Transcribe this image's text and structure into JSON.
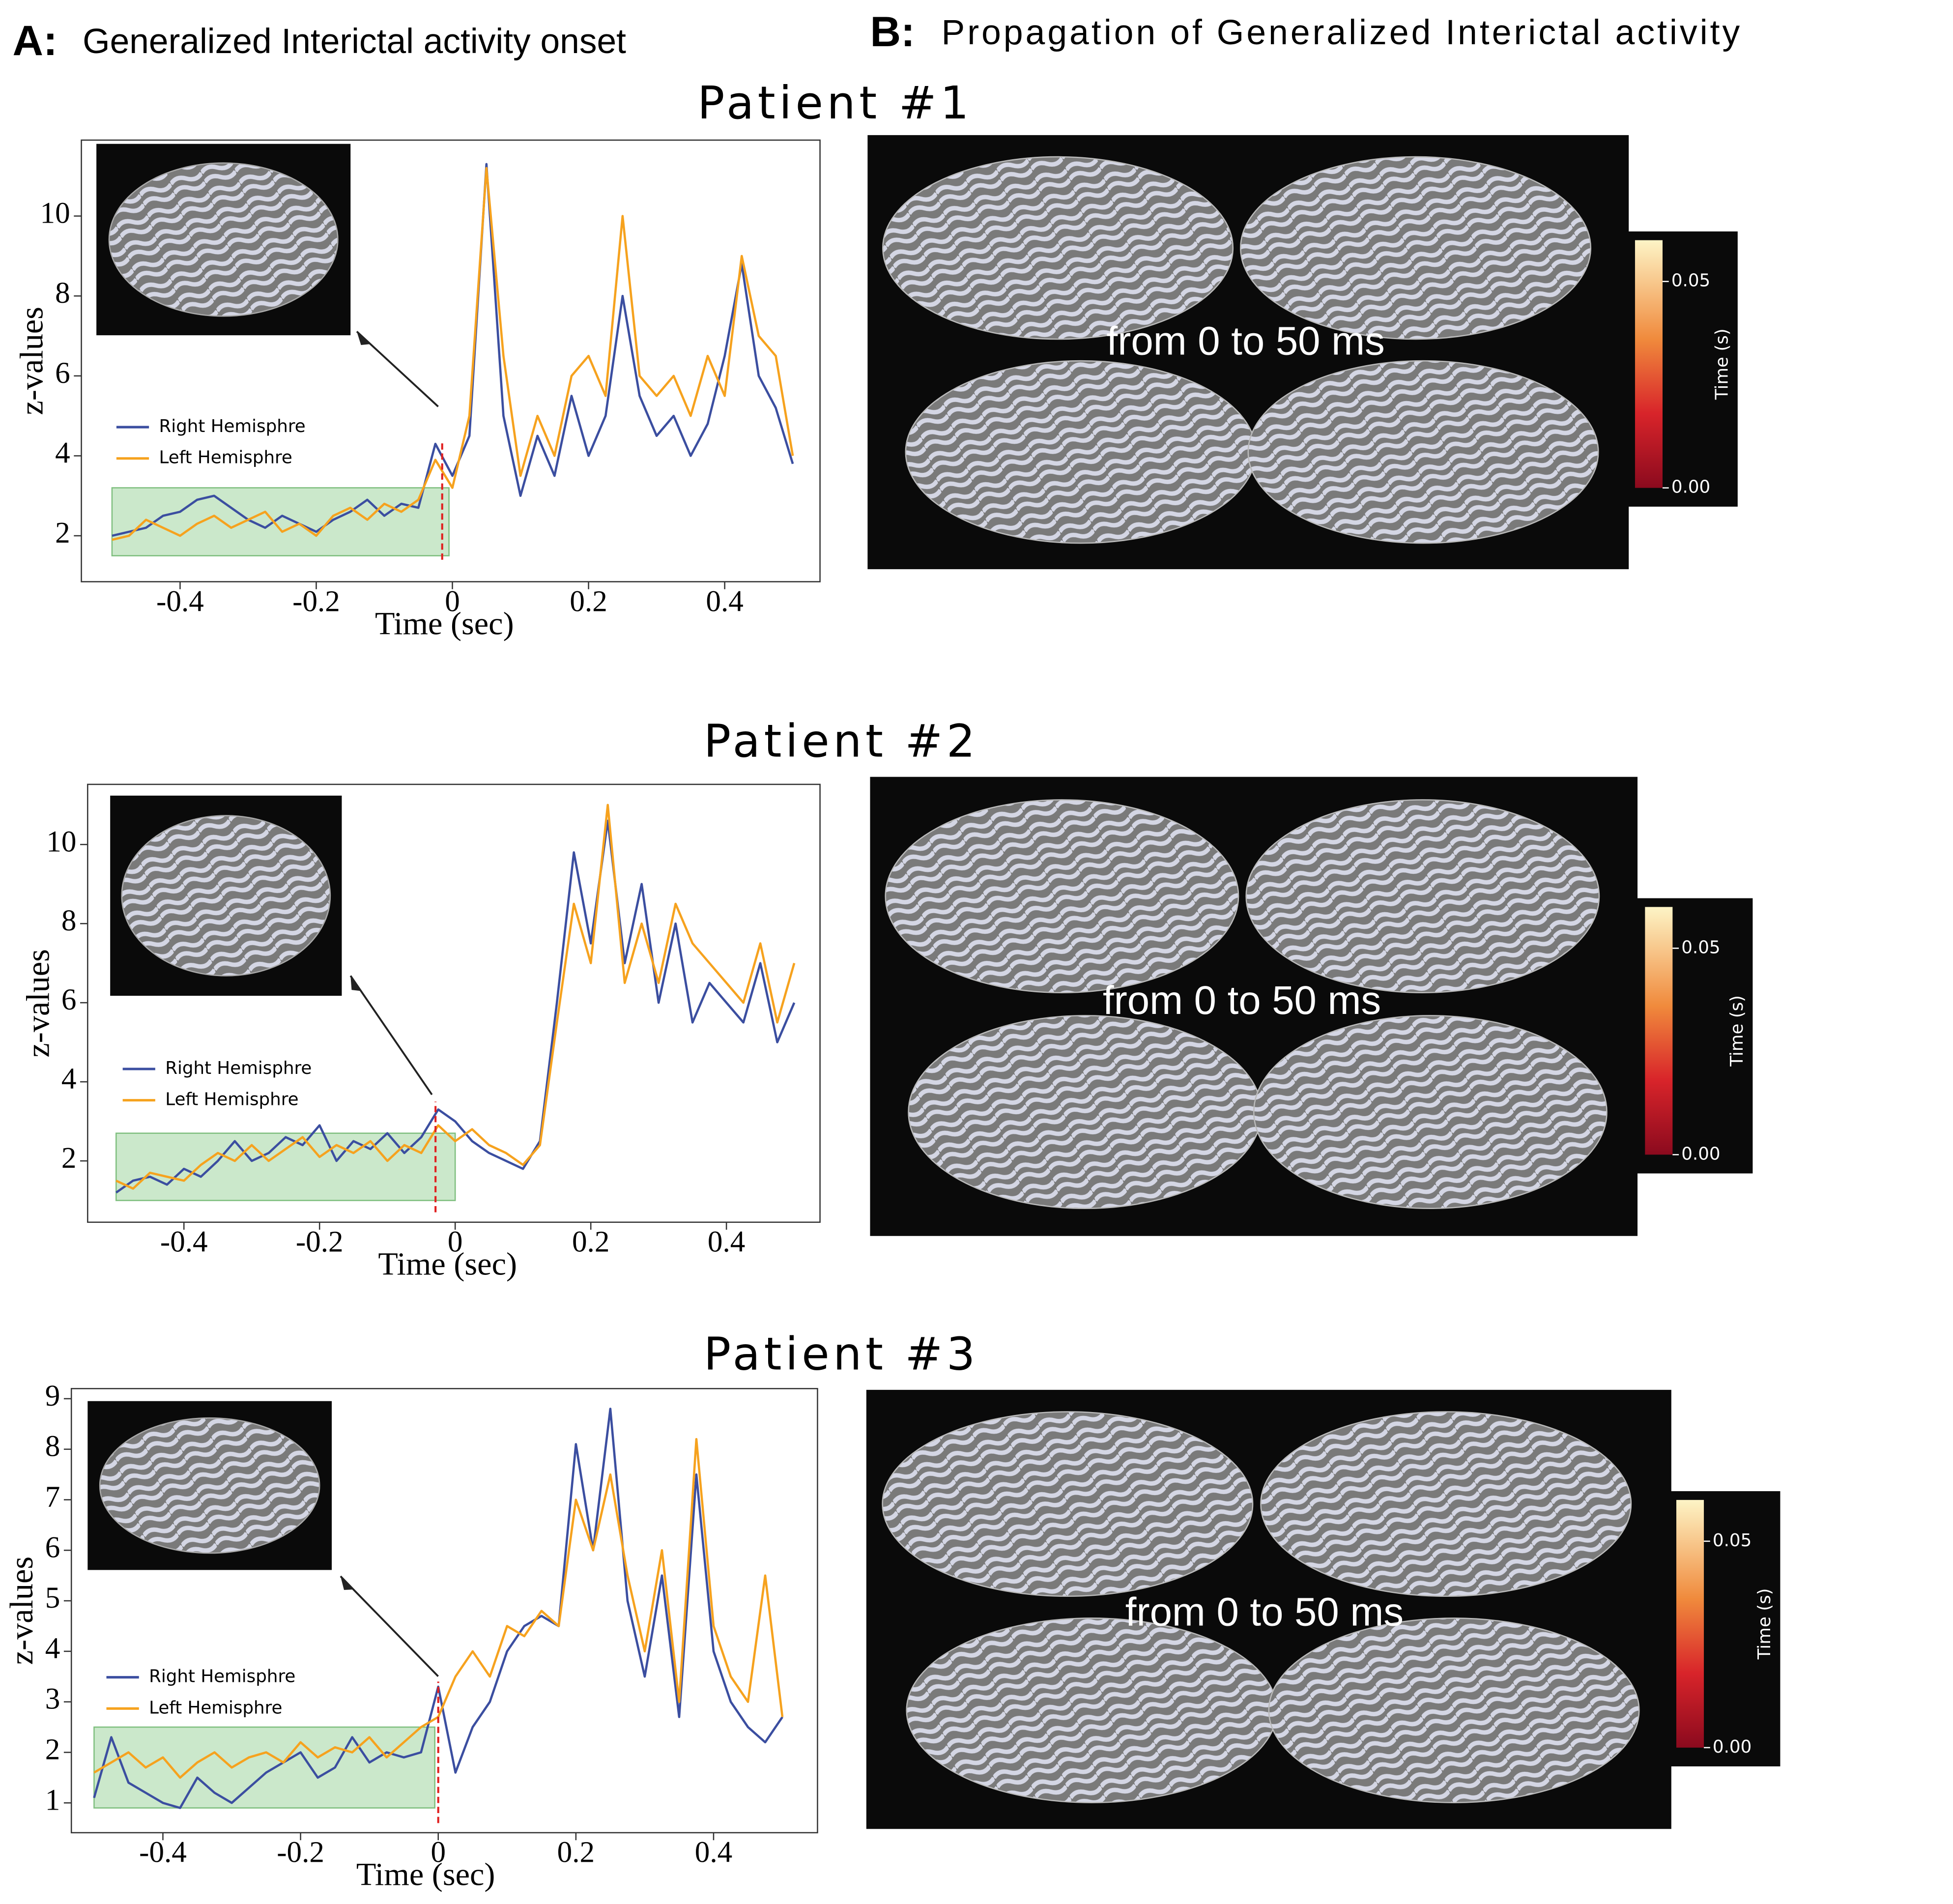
{
  "header": {
    "panel_a_label": "A:",
    "panel_a_title": "Generalized Interictal activity onset",
    "panel_b_label": "B:",
    "panel_b_title": "Propagation of Generalized Interictal activity"
  },
  "chart_data": [
    {
      "type": "line",
      "title": "Patient #1",
      "xlabel": "Time (sec)",
      "ylabel": "z-values",
      "x": [
        -0.5,
        -0.475,
        -0.45,
        -0.425,
        -0.4,
        -0.375,
        -0.35,
        -0.325,
        -0.3,
        -0.275,
        -0.25,
        -0.225,
        -0.2,
        -0.175,
        -0.15,
        -0.125,
        -0.1,
        -0.075,
        -0.05,
        -0.025,
        0,
        0.025,
        0.05,
        0.075,
        0.1,
        0.125,
        0.15,
        0.175,
        0.2,
        0.225,
        0.25,
        0.275,
        0.3,
        0.325,
        0.35,
        0.375,
        0.4,
        0.425,
        0.45,
        0.475,
        0.5
      ],
      "series": [
        {
          "name": "Right Hemisphre",
          "color": "#3b4ea0",
          "values": [
            2.0,
            2.1,
            2.2,
            2.5,
            2.6,
            2.9,
            3.0,
            2.7,
            2.4,
            2.2,
            2.5,
            2.3,
            2.1,
            2.4,
            2.6,
            2.9,
            2.5,
            2.8,
            2.7,
            4.3,
            3.5,
            4.5,
            11.3,
            5.0,
            3.0,
            4.5,
            3.5,
            5.5,
            4.0,
            5.0,
            8.0,
            5.5,
            4.5,
            5.0,
            4.0,
            4.8,
            6.5,
            8.8,
            6.0,
            5.2,
            3.8
          ]
        },
        {
          "name": "Left Hemisphre",
          "color": "#f6a21e",
          "values": [
            1.9,
            2.0,
            2.4,
            2.2,
            2.0,
            2.3,
            2.5,
            2.2,
            2.4,
            2.6,
            2.1,
            2.3,
            2.0,
            2.5,
            2.7,
            2.4,
            2.8,
            2.6,
            2.9,
            3.9,
            3.2,
            5.0,
            11.2,
            6.5,
            3.5,
            5.0,
            4.0,
            6.0,
            6.5,
            5.5,
            10.0,
            6.0,
            5.5,
            6.0,
            5.0,
            6.5,
            5.5,
            9.0,
            7.0,
            6.5,
            4.0
          ]
        }
      ],
      "xlim": [
        -0.545,
        0.54
      ],
      "ylim": [
        0.85,
        11.9
      ],
      "xticks": [
        -0.4,
        -0.2,
        0,
        0.2,
        0.4
      ],
      "yticks": [
        2,
        4,
        6,
        8,
        10
      ],
      "legend": "center left",
      "baseline_window": {
        "x": [
          -0.5,
          -0.005
        ],
        "y": [
          1.5,
          3.2
        ],
        "color": "#a8d8a8"
      },
      "onset": {
        "x": -0.015,
        "y": [
          1.4,
          4.4
        ],
        "color": "#e02020"
      },
      "propagation": {
        "annotation": "from 0 to 50 ms",
        "colorbar_label": "Time (s)",
        "clim": [
          0,
          0.06
        ],
        "colorbar_ticks": [
          {
            "value": 0,
            "label": "0.00"
          },
          {
            "value": 0.05,
            "label": "0.05"
          }
        ]
      }
    },
    {
      "type": "line",
      "title": "Patient #2",
      "xlabel": "Time (sec)",
      "ylabel": "z-values",
      "x": [
        -0.5,
        -0.475,
        -0.45,
        -0.425,
        -0.4,
        -0.375,
        -0.35,
        -0.325,
        -0.3,
        -0.275,
        -0.25,
        -0.225,
        -0.2,
        -0.175,
        -0.15,
        -0.125,
        -0.1,
        -0.075,
        -0.05,
        -0.025,
        0,
        0.025,
        0.05,
        0.075,
        0.1,
        0.125,
        0.15,
        0.175,
        0.2,
        0.225,
        0.25,
        0.275,
        0.3,
        0.325,
        0.35,
        0.375,
        0.4,
        0.425,
        0.45,
        0.475,
        0.5
      ],
      "series": [
        {
          "name": "Right Hemisphre",
          "color": "#3b4ea0",
          "values": [
            1.2,
            1.5,
            1.6,
            1.4,
            1.8,
            1.6,
            2.0,
            2.5,
            2.0,
            2.2,
            2.6,
            2.4,
            2.9,
            2.0,
            2.5,
            2.3,
            2.7,
            2.2,
            2.6,
            3.3,
            3.0,
            2.5,
            2.2,
            2.0,
            1.8,
            2.5,
            6.0,
            9.8,
            7.5,
            10.6,
            7.0,
            9.0,
            6.0,
            8.0,
            5.5,
            6.5,
            6.0,
            5.5,
            7.0,
            5.0,
            6.0
          ]
        },
        {
          "name": "Left Hemisphre",
          "color": "#f6a21e",
          "values": [
            1.5,
            1.3,
            1.7,
            1.6,
            1.5,
            1.9,
            2.2,
            2.0,
            2.4,
            2.0,
            2.3,
            2.6,
            2.1,
            2.4,
            2.2,
            2.5,
            2.0,
            2.4,
            2.2,
            2.9,
            2.5,
            2.8,
            2.4,
            2.2,
            1.9,
            2.4,
            5.5,
            8.5,
            7.0,
            11.0,
            6.5,
            8.0,
            6.5,
            8.5,
            7.5,
            7.0,
            6.5,
            6.0,
            7.5,
            5.5,
            7.0
          ]
        }
      ],
      "xlim": [
        -0.542,
        0.538
      ],
      "ylim": [
        0.45,
        11.52
      ],
      "xticks": [
        -0.4,
        -0.2,
        0,
        0.2,
        0.4
      ],
      "yticks": [
        2,
        4,
        6,
        8,
        10
      ],
      "legend": "center left",
      "baseline_window": {
        "x": [
          -0.5,
          0
        ],
        "y": [
          1.0,
          2.7
        ],
        "color": "#a8d8a8"
      },
      "onset": {
        "x": -0.029,
        "y": [
          0.7,
          3.5
        ],
        "color": "#e02020"
      },
      "propagation": {
        "annotation": "from 0 to 50 ms",
        "colorbar_label": "Time (s)",
        "clim": [
          0,
          0.06
        ],
        "colorbar_ticks": [
          {
            "value": 0,
            "label": "0.00"
          },
          {
            "value": 0.05,
            "label": "0.05"
          }
        ]
      }
    },
    {
      "type": "line",
      "title": "Patient #3",
      "xlabel": "Time (sec)",
      "ylabel": "z-values",
      "x": [
        -0.5,
        -0.475,
        -0.45,
        -0.425,
        -0.4,
        -0.375,
        -0.35,
        -0.325,
        -0.3,
        -0.275,
        -0.25,
        -0.225,
        -0.2,
        -0.175,
        -0.15,
        -0.125,
        -0.1,
        -0.075,
        -0.05,
        -0.025,
        0,
        0.025,
        0.05,
        0.075,
        0.1,
        0.125,
        0.15,
        0.175,
        0.2,
        0.225,
        0.25,
        0.275,
        0.3,
        0.325,
        0.35,
        0.375,
        0.4,
        0.425,
        0.45,
        0.475,
        0.5
      ],
      "series": [
        {
          "name": "Right Hemisphre",
          "color": "#3b4ea0",
          "values": [
            1.1,
            2.3,
            1.4,
            1.2,
            1.0,
            0.9,
            1.5,
            1.2,
            1.0,
            1.3,
            1.6,
            1.8,
            2.0,
            1.5,
            1.7,
            2.3,
            1.8,
            2.0,
            1.9,
            2.0,
            3.3,
            1.6,
            2.5,
            3.0,
            4.0,
            4.5,
            4.7,
            4.5,
            8.1,
            6.0,
            8.8,
            5.0,
            3.5,
            5.5,
            2.7,
            7.5,
            4.0,
            3.0,
            2.5,
            2.2,
            2.7
          ]
        },
        {
          "name": "Left Hemisphre",
          "color": "#f6a21e",
          "values": [
            1.6,
            1.8,
            2.0,
            1.7,
            1.9,
            1.5,
            1.8,
            2.0,
            1.7,
            1.9,
            2.0,
            1.8,
            2.2,
            1.9,
            2.1,
            2.0,
            2.3,
            1.9,
            2.2,
            2.5,
            2.7,
            3.5,
            4.0,
            3.5,
            4.5,
            4.3,
            4.8,
            4.5,
            7.0,
            6.0,
            7.5,
            5.5,
            4.0,
            6.0,
            3.0,
            8.2,
            4.5,
            3.5,
            3.0,
            5.5,
            2.7
          ]
        }
      ],
      "xlim": [
        -0.533,
        0.551
      ],
      "ylim": [
        0.41,
        9.2
      ],
      "xticks": [
        -0.4,
        -0.2,
        0,
        0.2,
        0.4
      ],
      "yticks": [
        1,
        2,
        3,
        4,
        5,
        6,
        7,
        8,
        9
      ],
      "legend": "center left",
      "baseline_window": {
        "x": [
          -0.5,
          -0.005
        ],
        "y": [
          0.9,
          2.5
        ],
        "color": "#a8d8a8"
      },
      "onset": {
        "x": 0,
        "y": [
          0.6,
          3.4
        ],
        "color": "#e02020"
      },
      "propagation": {
        "annotation": "from 0 to 50 ms",
        "colorbar_label": "Time (s)",
        "clim": [
          0,
          0.06
        ],
        "colorbar_ticks": [
          {
            "value": 0,
            "label": "0.00"
          },
          {
            "value": 0.05,
            "label": "0.05"
          }
        ]
      }
    }
  ]
}
